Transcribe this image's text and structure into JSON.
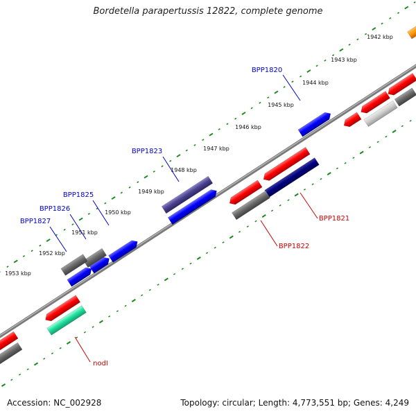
{
  "title": "Bordetella parapertussis 12822, complete genome",
  "footer": {
    "accession": "Accession: NC_002928",
    "summary": "Topology: circular; Length: 4,773,551 bp; Genes: 4,249"
  },
  "colors": {
    "backbone": "#888888",
    "ruler": "#228822",
    "forward_label": "#0000cc",
    "reverse_label": "#cc0000"
  },
  "ticks": [
    {
      "label": "1942 kbp"
    },
    {
      "label": "1943 kbp"
    },
    {
      "label": "1944 kbp"
    },
    {
      "label": "1945 kbp"
    },
    {
      "label": "1946 kbp"
    },
    {
      "label": "1947 kbp"
    },
    {
      "label": "1948 kbp"
    },
    {
      "label": "1949 kbp"
    },
    {
      "label": "1950 kbp"
    },
    {
      "label": "1951 kbp"
    },
    {
      "label": "1952 kbp"
    },
    {
      "label": "1953 kbp"
    }
  ],
  "gene_labels": {
    "bpp1820": "BPP1820",
    "bpp1823": "BPP1823",
    "bpp1825": "BPP1825",
    "bpp1826": "BPP1826",
    "bpp1827": "BPP1827",
    "bpp1821": "BPP1821",
    "bpp1822": "BPP1822",
    "nodi": "nodI"
  }
}
